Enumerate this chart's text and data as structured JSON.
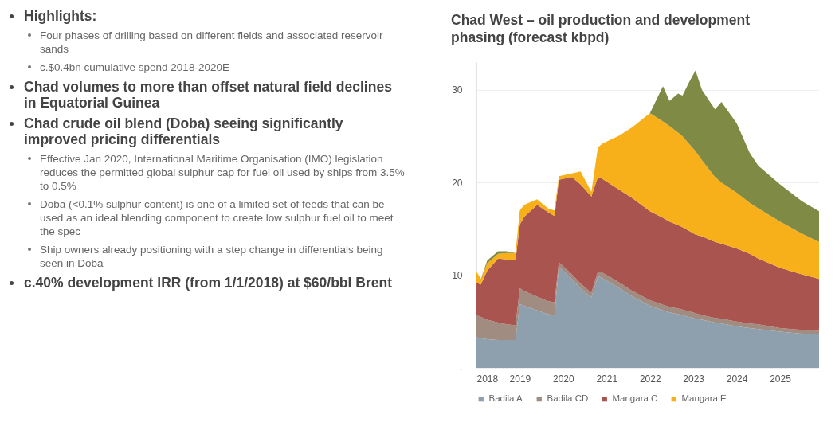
{
  "chart_data": {
    "type": "area",
    "title": "Chad West – oil production and development phasing (forecast kbpd)",
    "stacked": true,
    "grid": "y",
    "legend": "bottom",
    "x": [
      2018.0,
      2018.1,
      2018.25,
      2018.5,
      2018.7,
      2018.9,
      2019.0,
      2019.1,
      2019.4,
      2019.65,
      2019.8,
      2019.9,
      2020.2,
      2020.4,
      2020.65,
      2020.8,
      2020.9,
      2021.3,
      2021.6,
      2022.0,
      2022.3,
      2022.45,
      2022.65,
      2022.75,
      2022.9,
      2023.05,
      2023.2,
      2023.5,
      2023.65,
      2024.0,
      2024.3,
      2024.5,
      2025.0,
      2025.5,
      2025.9
    ],
    "xlim": [
      2018,
      2025.9
    ],
    "xticks": [
      2018,
      2019,
      2020,
      2021,
      2022,
      2023,
      2024,
      2025
    ],
    "ylim": [
      0,
      33
    ],
    "yticks": [
      {
        "value": 0,
        "label": "-"
      },
      10,
      20,
      30
    ],
    "series": [
      {
        "name": "Badila A",
        "color": "#8e9fae",
        "values": [
          3.3,
          3.2,
          3.1,
          3.0,
          3.0,
          3.0,
          6.9,
          6.7,
          6.2,
          5.8,
          5.7,
          10.9,
          9.6,
          8.6,
          7.6,
          9.9,
          9.7,
          8.6,
          7.7,
          6.7,
          6.2,
          6.0,
          5.8,
          5.7,
          5.5,
          5.3,
          5.2,
          4.9,
          4.8,
          4.5,
          4.3,
          4.2,
          3.9,
          3.7,
          3.6
        ]
      },
      {
        "name": "Badila CD",
        "color": "#a08c80",
        "values": [
          2.4,
          2.3,
          2.1,
          1.9,
          1.7,
          1.6,
          1.7,
          1.6,
          1.5,
          1.4,
          1.4,
          0.5,
          0.5,
          0.5,
          0.5,
          0.5,
          0.6,
          0.6,
          0.6,
          0.6,
          0.6,
          0.6,
          0.6,
          0.6,
          0.6,
          0.6,
          0.5,
          0.5,
          0.5,
          0.5,
          0.5,
          0.5,
          0.4,
          0.4,
          0.4
        ]
      },
      {
        "name": "Mangara C",
        "color": "#a9544f",
        "values": [
          3.5,
          3.5,
          5.3,
          6.9,
          7.0,
          7.0,
          6.9,
          8.0,
          9.9,
          9.6,
          9.3,
          8.9,
          10.5,
          10.7,
          10.4,
          10.2,
          10.1,
          10.0,
          10.0,
          9.6,
          9.4,
          9.2,
          9.0,
          8.9,
          8.7,
          8.5,
          8.5,
          8.2,
          8.1,
          7.9,
          7.5,
          7.1,
          6.5,
          6.0,
          5.6
        ]
      },
      {
        "name": "Mangara E",
        "color": "#f7b01a",
        "values": [
          1.2,
          0.6,
          0.8,
          0.5,
          0.7,
          0.8,
          1.5,
          1.3,
          0.6,
          0.4,
          0.6,
          0.4,
          0.4,
          1.4,
          0.5,
          3.2,
          3.8,
          5.9,
          7.7,
          10.6,
          10.4,
          10.3,
          10.0,
          9.8,
          9.4,
          9.0,
          8.2,
          7.0,
          6.6,
          6.0,
          5.5,
          5.4,
          5.0,
          4.4,
          4.0
        ]
      },
      {
        "color": "#7f8a45",
        "values": [
          0,
          0,
          0.3,
          0.3,
          0.2,
          0,
          0,
          0,
          0,
          0,
          0,
          0,
          0,
          0,
          0,
          0,
          0,
          0,
          0,
          0,
          3.8,
          2.7,
          4.2,
          4.4,
          6.6,
          8.7,
          7.6,
          7.3,
          8.7,
          7.5,
          5.4,
          4.6,
          4.0,
          3.5,
          3.3
        ]
      }
    ],
    "annotations": [
      "Highlights:",
      "Four phases of drilling based on different fields and associated reservoir sands",
      "c.$0.4bn cumulative spend 2018-2020E",
      "Chad volumes to more than offset natural field declines in Equatorial Guinea",
      "Chad crude oil blend (Doba) seeing significantly improved pricing differentials",
      "Effective Jan 2020, International Maritime Organisation (IMO) legislation reduces the permitted global sulphur cap for fuel oil used by ships from 3.5% to 0.5%",
      "Doba (<0.1% sulphur content) is one of a limited set of feeds that can be used as an ideal blending component to create low sulphur fuel oil to meet the spec",
      "Ship owners already positioning with a step change in differentials being seen in Doba",
      "c.40% development IRR (from 1/1/2018) at $60/bbl Brent"
    ]
  }
}
